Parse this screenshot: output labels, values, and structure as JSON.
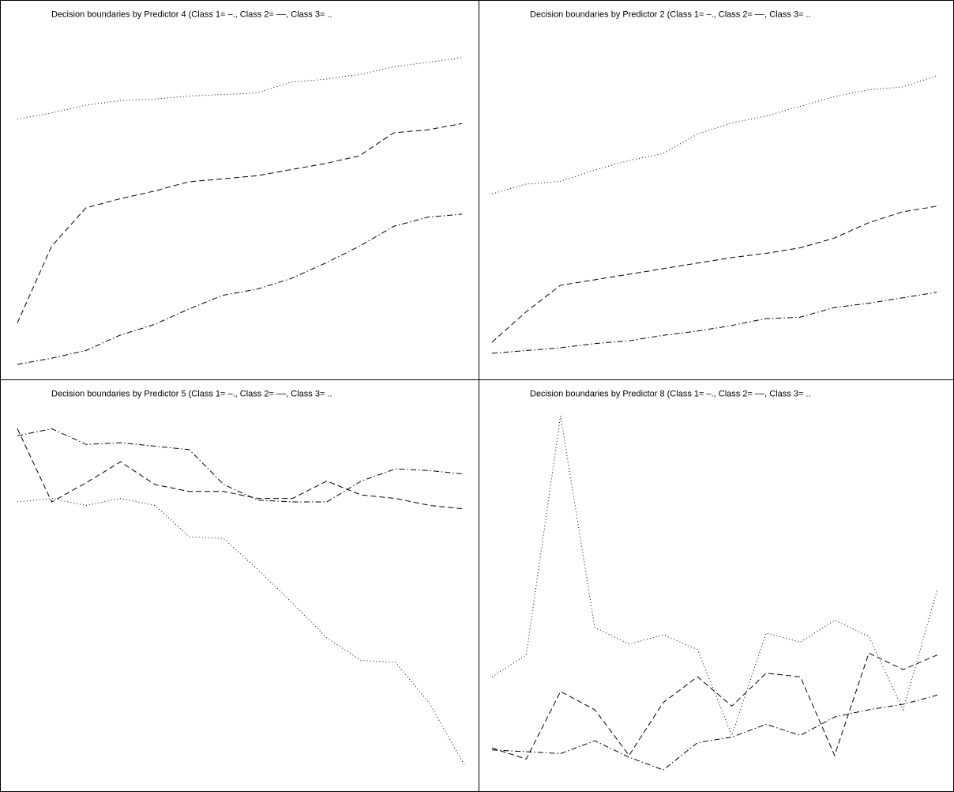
{
  "chart_data": [
    {
      "type": "line",
      "title": "Decision boundaries by Predictor 4 (Class 1= –., Class 2= ––, Class 3= ..",
      "x": [
        1,
        2,
        3,
        4,
        5,
        6,
        7,
        8,
        9,
        10,
        11,
        12,
        13,
        14
      ],
      "ylim": [
        0,
        1
      ],
      "grid": false,
      "series": [
        {
          "style": "dashdot",
          "values": [
            0.0,
            0.02,
            0.045,
            0.095,
            0.13,
            0.18,
            0.225,
            0.245,
            0.28,
            0.33,
            0.385,
            0.45,
            0.48,
            0.49
          ]
        },
        {
          "style": "dashed",
          "values": [
            0.135,
            0.385,
            0.51,
            0.54,
            0.565,
            0.595,
            0.605,
            0.615,
            0.635,
            0.655,
            0.68,
            0.755,
            0.765,
            0.785
          ]
        },
        {
          "style": "dotted",
          "values": [
            0.8,
            0.82,
            0.845,
            0.86,
            0.865,
            0.875,
            0.88,
            0.885,
            0.92,
            0.93,
            0.945,
            0.97,
            0.985,
            1.0
          ]
        }
      ]
    },
    {
      "type": "line",
      "title": "Decision boundaries by Predictor 2 (Class 1= –., Class 2= ––, Class 3= ..",
      "x": [
        1,
        2,
        3,
        4,
        5,
        6,
        7,
        8,
        9,
        10,
        11,
        12,
        13,
        14
      ],
      "ylim": [
        0,
        1
      ],
      "grid": false,
      "series": [
        {
          "style": "dashdot",
          "values": [
            0.0,
            0.01,
            0.02,
            0.035,
            0.045,
            0.065,
            0.08,
            0.1,
            0.125,
            0.13,
            0.165,
            0.18,
            0.2,
            0.22
          ]
        },
        {
          "style": "dashed",
          "values": [
            0.04,
            0.15,
            0.245,
            0.265,
            0.285,
            0.305,
            0.325,
            0.345,
            0.36,
            0.38,
            0.415,
            0.47,
            0.51,
            0.53
          ]
        },
        {
          "style": "dotted",
          "values": [
            0.575,
            0.61,
            0.62,
            0.66,
            0.695,
            0.72,
            0.79,
            0.83,
            0.855,
            0.89,
            0.925,
            0.95,
            0.96,
            1.0
          ]
        }
      ]
    },
    {
      "type": "line",
      "title": "Decision boundaries by Predictor 5 (Class 1= –., Class 2= ––, Class 3= ..",
      "x": [
        1,
        2,
        3,
        4,
        5,
        6,
        7,
        8,
        9,
        10,
        11,
        12,
        13,
        14
      ],
      "ylim": [
        0,
        1
      ],
      "grid": false,
      "series": [
        {
          "style": "dashdot",
          "values": [
            0.945,
            0.965,
            0.92,
            0.925,
            0.915,
            0.905,
            0.805,
            0.76,
            0.755,
            0.755,
            0.815,
            0.85,
            0.845,
            0.835
          ]
        },
        {
          "style": "dashed",
          "values": [
            0.965,
            0.755,
            0.81,
            0.87,
            0.805,
            0.785,
            0.785,
            0.765,
            0.765,
            0.815,
            0.775,
            0.765,
            0.745,
            0.735
          ]
        },
        {
          "style": "dotted",
          "values": [
            0.755,
            0.765,
            0.745,
            0.765,
            0.745,
            0.655,
            0.65,
            0.56,
            0.465,
            0.365,
            0.3,
            0.295,
            0.175,
            0.0
          ]
        }
      ]
    },
    {
      "type": "line",
      "title": "Decision boundaries by Predictor 8 (Class 1= –., Class 2= ––, Class 3= ..",
      "x": [
        1,
        2,
        3,
        4,
        5,
        6,
        7,
        8,
        9,
        10,
        11,
        12,
        13,
        14
      ],
      "ylim": [
        0,
        1
      ],
      "grid": false,
      "series": [
        {
          "style": "dashdot",
          "values": [
            0.085,
            0.08,
            0.075,
            0.11,
            0.065,
            0.03,
            0.105,
            0.12,
            0.155,
            0.125,
            0.175,
            0.195,
            0.21,
            0.235
          ]
        },
        {
          "style": "dashed",
          "values": [
            0.09,
            0.06,
            0.245,
            0.195,
            0.07,
            0.215,
            0.285,
            0.205,
            0.295,
            0.285,
            0.07,
            0.35,
            0.305,
            0.345
          ]
        },
        {
          "style": "dotted",
          "values": [
            0.285,
            0.345,
            1.0,
            0.42,
            0.375,
            0.4,
            0.36,
            0.125,
            0.405,
            0.38,
            0.44,
            0.395,
            0.195,
            0.525
          ]
        }
      ]
    }
  ]
}
